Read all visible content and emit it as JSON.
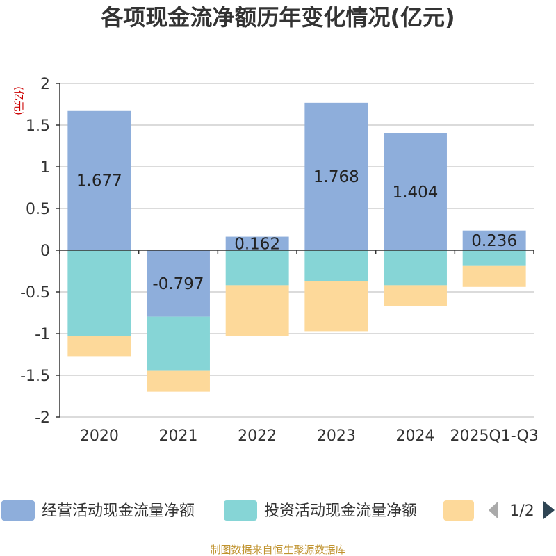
{
  "chart_data": {
    "type": "bar",
    "stacked": true,
    "title": "各项现金流净额历年变化情况(亿元)",
    "ylabel": "(亿元)",
    "ylim": [
      -2,
      2
    ],
    "yticks": [
      "2",
      "1.5",
      "1",
      "0.5",
      "0",
      "-0.5",
      "-1",
      "-1.5",
      "-2"
    ],
    "categories": [
      "2020",
      "2021",
      "2022",
      "2023",
      "2024",
      "2025Q1-Q3"
    ],
    "series": [
      {
        "name": "经营活动现金流量净额",
        "color": "#8eaedb",
        "values": [
          1.677,
          -0.797,
          0.162,
          1.768,
          1.404,
          0.236
        ],
        "labels": [
          "1.677",
          "-0.797",
          "0.162",
          "1.768",
          "1.404",
          "0.236"
        ]
      },
      {
        "name": "投资活动现金流量净额",
        "color": "#86d5d6",
        "values": [
          -1.03,
          -0.65,
          -0.42,
          -0.37,
          -0.42,
          -0.19
        ]
      },
      {
        "name": "",
        "color": "#fdd99a",
        "values": [
          -0.24,
          -0.25,
          -0.61,
          -0.6,
          -0.25,
          -0.25
        ]
      }
    ],
    "legend": {
      "items": [
        "经营活动现金流量净额",
        "投资活动现金流量净额",
        ""
      ],
      "page": "1/2",
      "position": "bottom"
    },
    "source": "制图数据来自恒生聚源数据库"
  }
}
